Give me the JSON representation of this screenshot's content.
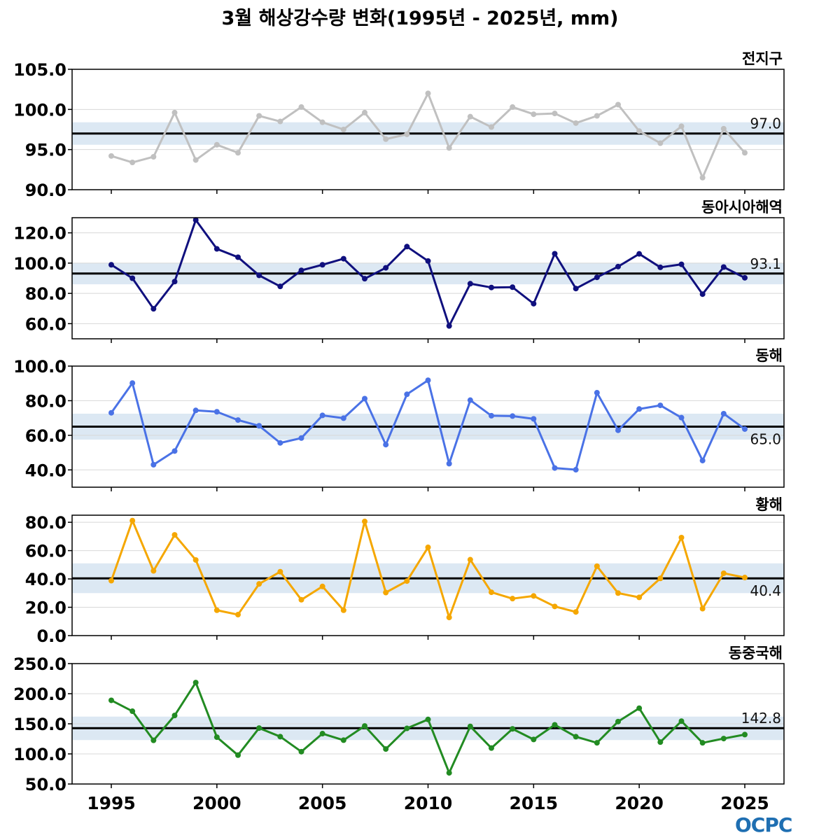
{
  "title": "3월 해상강수량 변화(1995년 - 2025년, mm)",
  "logo_text": "OCPC",
  "chart_data": [
    {
      "type": "line",
      "panel_label": "전지구",
      "color": "#c0c0c0",
      "ylim": [
        90,
        105
      ],
      "yticks": [
        "90.0",
        "95.0",
        "100.0",
        "105.0"
      ],
      "mean": 97.0,
      "mean_label": "97.0",
      "band": [
        95.6,
        98.4
      ],
      "x": [
        1995,
        1996,
        1997,
        1998,
        1999,
        2000,
        2001,
        2002,
        2003,
        2004,
        2005,
        2006,
        2007,
        2008,
        2009,
        2010,
        2011,
        2012,
        2013,
        2014,
        2015,
        2016,
        2017,
        2018,
        2019,
        2020,
        2021,
        2022,
        2023,
        2024,
        2025
      ],
      "values": [
        94.2,
        93.4,
        94.1,
        99.6,
        93.7,
        95.6,
        94.6,
        99.2,
        98.5,
        100.3,
        98.4,
        97.5,
        99.6,
        96.3,
        96.9,
        102.0,
        95.2,
        99.1,
        97.8,
        100.3,
        99.4,
        99.5,
        98.3,
        99.2,
        100.6,
        97.3,
        95.8,
        97.9,
        91.5,
        97.6,
        94.6
      ],
      "grid": true
    },
    {
      "type": "line",
      "panel_label": "동아시아해역",
      "color": "#10107e",
      "ylim": [
        50,
        130
      ],
      "yticks": [
        "60.0",
        "80.0",
        "100.0",
        "120.0"
      ],
      "mean": 93.1,
      "mean_label": "93.1",
      "band": [
        86.0,
        100.0
      ],
      "x": [
        1995,
        1996,
        1997,
        1998,
        1999,
        2000,
        2001,
        2002,
        2003,
        2004,
        2005,
        2006,
        2007,
        2008,
        2009,
        2010,
        2011,
        2012,
        2013,
        2014,
        2015,
        2016,
        2017,
        2018,
        2019,
        2020,
        2021,
        2022,
        2023,
        2024,
        2025
      ],
      "values": [
        98.9,
        90.0,
        69.8,
        87.8,
        128.5,
        109.4,
        103.9,
        91.9,
        84.6,
        95.2,
        98.9,
        102.9,
        89.7,
        96.9,
        110.9,
        101.4,
        58.5,
        86.4,
        83.9,
        84.1,
        73.2,
        106.2,
        83.2,
        90.6,
        97.7,
        106.1,
        97.2,
        99.2,
        79.5,
        97.4,
        90.3
      ],
      "grid": true
    },
    {
      "type": "line",
      "panel_label": "동해",
      "color": "#4a72e6",
      "ylim": [
        30,
        100
      ],
      "yticks": [
        "40.0",
        "60.0",
        "80.0",
        "100.0"
      ],
      "mean": 65.0,
      "mean_label": "65.0",
      "band": [
        57.5,
        72.5
      ],
      "x": [
        1995,
        1996,
        1997,
        1998,
        1999,
        2000,
        2001,
        2002,
        2003,
        2004,
        2005,
        2006,
        2007,
        2008,
        2009,
        2010,
        2011,
        2012,
        2013,
        2014,
        2015,
        2016,
        2017,
        2018,
        2019,
        2020,
        2021,
        2022,
        2023,
        2024,
        2025
      ],
      "values": [
        73.0,
        90.2,
        43.0,
        50.9,
        74.4,
        73.6,
        68.8,
        65.5,
        55.6,
        58.4,
        71.5,
        69.9,
        81.2,
        54.6,
        83.7,
        91.8,
        43.6,
        80.3,
        71.3,
        71.1,
        69.5,
        41.1,
        40.1,
        84.6,
        62.9,
        75.2,
        77.3,
        70.2,
        45.4,
        72.5,
        63.6
      ],
      "grid": true
    },
    {
      "type": "line",
      "panel_label": "황해",
      "color": "#f5a700",
      "ylim": [
        0,
        85
      ],
      "yticks": [
        "0.0",
        "20.0",
        "40.0",
        "60.0",
        "80.0"
      ],
      "mean": 40.4,
      "mean_label": "40.4",
      "band": [
        30.0,
        51.0
      ],
      "x": [
        1995,
        1996,
        1997,
        1998,
        1999,
        2000,
        2001,
        2002,
        2003,
        2004,
        2005,
        2006,
        2007,
        2008,
        2009,
        2010,
        2011,
        2012,
        2013,
        2014,
        2015,
        2016,
        2017,
        2018,
        2019,
        2020,
        2021,
        2022,
        2023,
        2024,
        2025
      ],
      "values": [
        38.8,
        81.2,
        45.7,
        71.1,
        53.4,
        17.9,
        14.8,
        36.5,
        45.1,
        25.3,
        34.7,
        17.9,
        80.6,
        30.4,
        38.5,
        62.3,
        12.8,
        53.6,
        30.6,
        26.1,
        28.0,
        20.6,
        16.7,
        49.0,
        30.0,
        27.0,
        40.4,
        69.2,
        19.0,
        44.0,
        41.0
      ],
      "grid": true
    },
    {
      "type": "line",
      "panel_label": "동중국해",
      "color": "#228b22",
      "ylim": [
        50,
        250
      ],
      "yticks": [
        "50.0",
        "100.0",
        "150.0",
        "200.0",
        "250.0"
      ],
      "mean": 142.8,
      "mean_label": "142.8",
      "band": [
        123.0,
        162.0
      ],
      "x": [
        1995,
        1996,
        1997,
        1998,
        1999,
        2000,
        2001,
        2002,
        2003,
        2004,
        2005,
        2006,
        2007,
        2008,
        2009,
        2010,
        2011,
        2012,
        2013,
        2014,
        2015,
        2016,
        2017,
        2018,
        2019,
        2020,
        2021,
        2022,
        2023,
        2024,
        2025
      ],
      "values": [
        189.0,
        170.9,
        122.5,
        163.8,
        218.5,
        127.8,
        97.9,
        142.9,
        128.7,
        103.7,
        133.7,
        122.8,
        146.4,
        108.1,
        142.4,
        157.2,
        68.5,
        145.7,
        109.7,
        141.6,
        124.0,
        148.3,
        128.6,
        118.4,
        153.7,
        175.9,
        119.6,
        154.4,
        118.4,
        125.5,
        132.1
      ],
      "grid": true
    }
  ]
}
